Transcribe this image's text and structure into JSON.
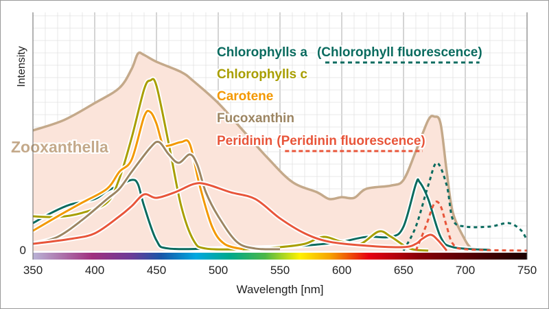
{
  "chart_data": {
    "type": "line",
    "title": "",
    "xlabel": "Wavelength [nm]",
    "ylabel": "Intensity",
    "xlim": [
      350,
      750
    ],
    "ylim": [
      0,
      100
    ],
    "x_ticks": [
      350,
      400,
      450,
      500,
      550,
      600,
      650,
      700,
      750
    ],
    "y_ticks": [
      0
    ],
    "grid": true,
    "legend_placement": "top-center",
    "spectrum_bar": true,
    "series": [
      {
        "name": "Zooxanthella",
        "color": "#c4a98a",
        "fill": "#fbe4da",
        "style": "filled",
        "x": [
          350,
          375,
          400,
          420,
          430,
          435,
          440,
          450,
          470,
          480,
          500,
          520,
          540,
          560,
          580,
          590,
          600,
          610,
          620,
          640,
          650,
          660,
          670,
          675,
          680,
          685,
          690,
          700,
          705
        ],
        "y": [
          51.5,
          55.9,
          63.2,
          69.7,
          77.9,
          84.4,
          83.8,
          80.9,
          76.5,
          72.6,
          63.2,
          51.5,
          39.7,
          29.4,
          25,
          22.1,
          22.9,
          22.6,
          26.5,
          27.9,
          30.3,
          42.6,
          55.9,
          57.4,
          54.4,
          33.8,
          16.2,
          4.4,
          0.9
        ]
      },
      {
        "name": "Chlorophylls a",
        "color": "#0a6b5f",
        "style": "solid",
        "x": [
          350,
          365,
          380,
          400,
          410,
          420,
          430,
          435,
          440,
          450,
          460,
          500,
          550,
          580,
          600,
          620,
          640,
          650,
          660,
          663,
          670,
          680,
          690,
          720
        ],
        "y": [
          11.8,
          16.2,
          19.7,
          22.1,
          25.6,
          27.9,
          30.3,
          28.5,
          19.1,
          4.4,
          0.9,
          0.9,
          1.5,
          2.6,
          3.8,
          5.9,
          5.9,
          10.3,
          28.5,
          29.4,
          22.1,
          5.9,
          1.5,
          0.3
        ]
      },
      {
        "name": "(Chlorophyll fluorescence)",
        "color": "#0a6b5f",
        "style": "dotted",
        "x": [
          650,
          660,
          670,
          677,
          685,
          690,
          700,
          720,
          735,
          745,
          750
        ],
        "y": [
          0,
          10.3,
          27.9,
          37.6,
          27.9,
          13.2,
          10.3,
          10.3,
          11.8,
          8.8,
          4.4
        ]
      },
      {
        "name": "Chlorophylls c",
        "color": "#a89e00",
        "style": "solid",
        "x": [
          350,
          370,
          390,
          410,
          420,
          430,
          440,
          445,
          450,
          460,
          470,
          480,
          490,
          520,
          550,
          570,
          585,
          600,
          615,
          630,
          640,
          655,
          670
        ],
        "y": [
          14.7,
          14.4,
          16.2,
          20.6,
          30.9,
          48.5,
          69.1,
          72.9,
          70.6,
          45.6,
          19.1,
          4.4,
          0.9,
          0.6,
          1.5,
          2.9,
          5.9,
          3.8,
          2.9,
          8.2,
          5.9,
          0.9,
          0
        ]
      },
      {
        "name": "Carotene",
        "color": "#f39800",
        "style": "solid",
        "x": [
          350,
          370,
          390,
          410,
          420,
          430,
          440,
          445,
          450,
          455,
          460,
          470,
          477,
          485,
          495,
          505,
          520
        ],
        "y": [
          8.5,
          14.7,
          20.6,
          26.5,
          33.8,
          39.1,
          57.4,
          59.4,
          54.4,
          45.6,
          45,
          46.5,
          45.6,
          27.9,
          10.3,
          2.9,
          0.6
        ]
      },
      {
        "name": "Fucoxanthin",
        "color": "#9c8562",
        "style": "solid",
        "x": [
          350,
          370,
          390,
          410,
          420,
          430,
          445,
          452,
          460,
          468,
          477,
          483,
          490,
          500,
          515,
          530,
          550
        ],
        "y": [
          2.9,
          5.9,
          13.2,
          22.1,
          26.5,
          33.8,
          44.1,
          46.5,
          41.2,
          37.6,
          41.2,
          36.8,
          25,
          14.7,
          3.8,
          0.9,
          0.6
        ]
      },
      {
        "name": "Peridinin",
        "color": "#e8553a",
        "style": "solid",
        "x": [
          350,
          380,
          400,
          420,
          430,
          440,
          450,
          465,
          480,
          490,
          510,
          530,
          550,
          570,
          590,
          620,
          650,
          660,
          665,
          672,
          678,
          685
        ],
        "y": [
          2.9,
          5,
          7.4,
          14.7,
          19.1,
          24.1,
          22.6,
          25,
          28.5,
          28.5,
          25,
          22.1,
          13.8,
          7.4,
          3.8,
          2.1,
          1.5,
          2.9,
          5,
          6.8,
          4.4,
          0
        ]
      },
      {
        "name": "(Peridinin fluorescence)",
        "color": "#e8553a",
        "style": "dashed",
        "x": [
          660,
          668,
          675,
          680,
          685,
          690,
          700,
          750
        ],
        "y": [
          0,
          10.3,
          20.3,
          19.1,
          10.3,
          2.9,
          0.6,
          0
        ]
      }
    ],
    "legend": [
      {
        "label": "Chlorophylls a",
        "extra": "(Chlorophyll fluorescence)",
        "color": "#0a6b5f"
      },
      {
        "label": "Chlorophylls c",
        "color": "#a89e00"
      },
      {
        "label": "Carotene",
        "color": "#f39800"
      },
      {
        "label": "Fucoxanthin",
        "color": "#9c8562"
      },
      {
        "label": "Peridinin",
        "extra": "(Peridinin fluorescence)",
        "color": "#e8553a"
      }
    ],
    "annotation": "Zooxanthella"
  }
}
